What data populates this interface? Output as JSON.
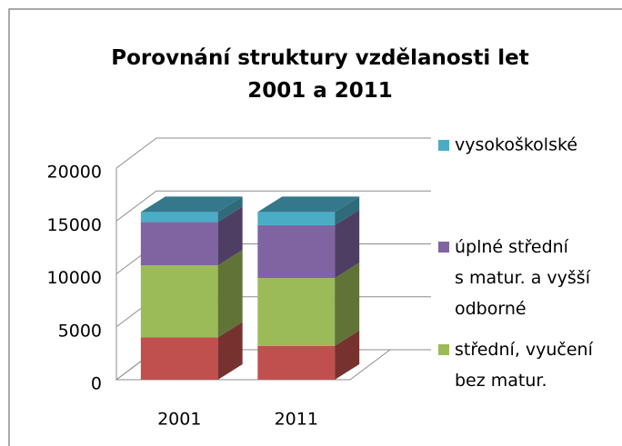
{
  "chart_data": {
    "type": "bar3d_stacked",
    "title": "Porovnání struktury vzdělanosti let\n2001 a 2011",
    "categories": [
      "2001",
      "2011"
    ],
    "series": [
      {
        "color": "#c0504d",
        "values": [
          4000,
          3200
        ]
      },
      {
        "name": "střední, vyučení\nbez matur.",
        "color": "#9bbb59",
        "values": [
          6800,
          6400
        ]
      },
      {
        "name": "úplné střední\ns matur. a vyšší\nodborné",
        "color": "#8064a2",
        "values": [
          4100,
          5000
        ]
      },
      {
        "name": "vysokoškolské",
        "color": "#4bacc6",
        "values": [
          950,
          1250
        ]
      }
    ],
    "ylim": [
      0,
      20000
    ],
    "yticks": [
      0,
      5000,
      10000,
      15000,
      20000
    ],
    "grid": true
  }
}
